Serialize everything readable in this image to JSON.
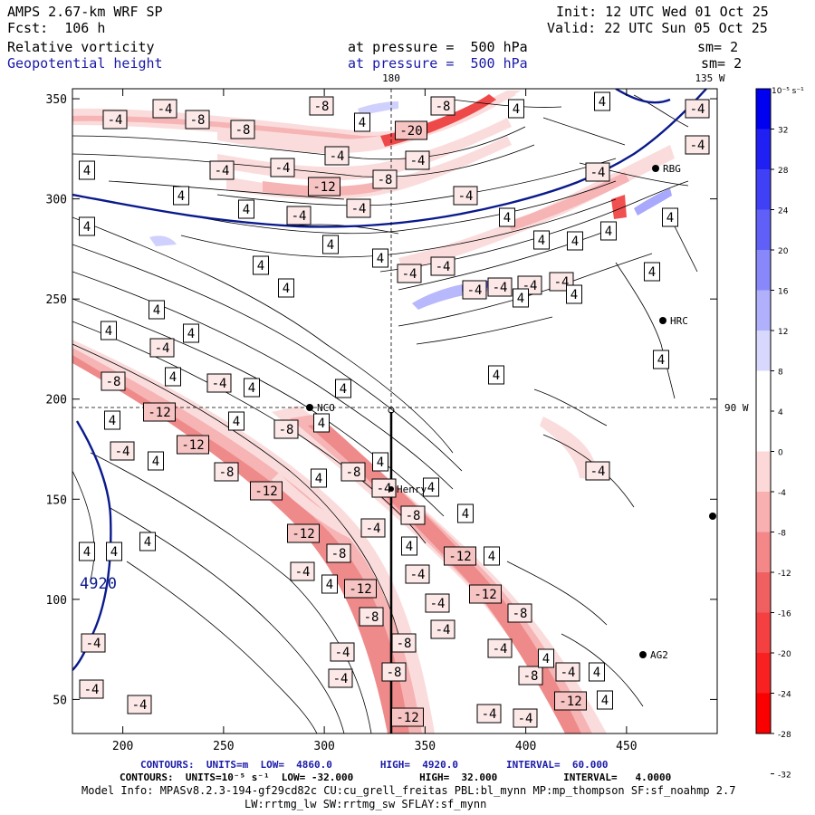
{
  "header": {
    "model": "AMPS 2.67-km WRF SP",
    "init": "Init: 12 UTC Wed 01 Oct 25",
    "fcst": "Fcst:  106 h",
    "valid": "Valid: 22 UTC Sun 05 Oct 25",
    "field1": "Relative vorticity",
    "field1_level": "at pressure =  500 hPa",
    "field1_sm": "sm= 2",
    "field2": "Geopotential height",
    "field2_level": "at pressure =  500 hPa",
    "field2_sm": "sm= 2"
  },
  "map": {
    "xticks": [
      "200",
      "250",
      "300",
      "350",
      "400",
      "450"
    ],
    "yticks": [
      "350",
      "300",
      "250",
      "200",
      "150",
      "100",
      "50"
    ],
    "meridian_labels": {
      "top_180": "180",
      "top_135w": "135 W",
      "right_90w": "90 W"
    },
    "contour_line_label": "4920",
    "stations": [
      {
        "id": "NCO",
        "name": "NCO"
      },
      {
        "id": "HRC",
        "name": "HRC"
      },
      {
        "id": "RBG",
        "name": "RBG"
      },
      {
        "id": "AG2",
        "name": "AG2"
      },
      {
        "id": "Henry",
        "name": "Henry"
      }
    ],
    "vorticity_labels": [
      "-4",
      "-8",
      "-12",
      "-20",
      "4"
    ],
    "colors": {
      "positive": "#0000ff",
      "negative": "#ff0000",
      "height_contour": "#0a1a8c"
    }
  },
  "colorbar": {
    "unit_label": "10⁻⁵ s⁻¹",
    "ticks": [
      "32",
      "28",
      "24",
      "20",
      "16",
      "12",
      "8",
      "4",
      "0",
      "-4",
      "-8",
      "-12",
      "-16",
      "-20",
      "-24",
      "-28",
      "-32"
    ],
    "colors": [
      "#0000f0",
      "#2020f4",
      "#4040f6",
      "#6060f8",
      "#8888fa",
      "#b0b0fc",
      "#d8d8fe",
      "#ffffff",
      "#ffffff",
      "#fcd8d8",
      "#f8b0b0",
      "#f48888",
      "#f06060",
      "#f44040",
      "#f82020",
      "#fa0000"
    ]
  },
  "footer": {
    "line1": "CONTOURS:  UNITS=m  LOW=  4860.0        HIGH=  4920.0        INTERVAL=  60.000",
    "line2": "CONTOURS:  UNITS=10⁻⁵ s⁻¹  LOW= -32.000           HIGH=  32.000           INTERVAL=   4.0000",
    "line3": "Model Info: MPASv8.2.3-194-gf29cd82c CU:cu_grell_freitas PBL:bl_mynn MP:mp_thompson SF:sf_noahmp 2.7",
    "line4": "LW:rrtmg_lw SW:rrtmg_sw SFLAY:sf_mynn"
  }
}
